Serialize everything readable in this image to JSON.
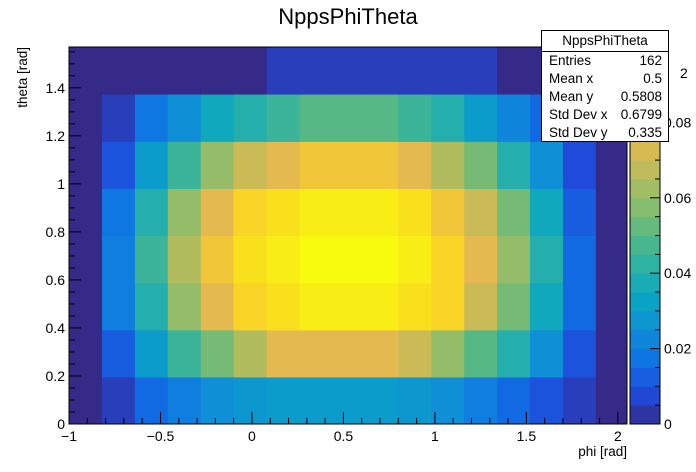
{
  "chart_data": {
    "type": "heatmap",
    "title": "NppsPhiTheta",
    "xlabel": "phi [rad]",
    "ylabel": "theta [rad]",
    "xlim": [
      -1.0,
      2.05
    ],
    "ylim": [
      0,
      1.57
    ],
    "x_ticks": [
      "−1",
      "−0.5",
      "0",
      "0.5",
      "1",
      "1.5",
      "2"
    ],
    "y_ticks": [
      "0",
      "0.2",
      "0.4",
      "0.6",
      "0.8",
      "1",
      "1.2",
      "1.4"
    ],
    "x_bins": [
      -1.0,
      -0.82,
      -0.64,
      -0.46,
      -0.28,
      -0.1,
      0.08,
      0.26,
      0.44,
      0.62,
      0.8,
      0.98,
      1.16,
      1.34,
      1.52,
      1.7,
      1.88,
      2.05
    ],
    "y_bins": [
      0,
      0.196,
      0.392,
      0.589,
      0.785,
      0.981,
      1.177,
      1.374,
      1.57
    ],
    "values": [
      [
        0.0,
        0.005,
        0.015,
        0.02,
        0.025,
        0.028,
        0.03,
        0.03,
        0.03,
        0.03,
        0.028,
        0.025,
        0.02,
        0.015,
        0.01,
        0.005,
        0.0
      ],
      [
        0.0,
        0.012,
        0.03,
        0.045,
        0.055,
        0.065,
        0.075,
        0.075,
        0.075,
        0.075,
        0.07,
        0.06,
        0.05,
        0.04,
        0.025,
        0.01,
        0.0
      ],
      [
        0.0,
        0.02,
        0.04,
        0.06,
        0.075,
        0.085,
        0.09,
        0.095,
        0.095,
        0.095,
        0.09,
        0.085,
        0.07,
        0.055,
        0.035,
        0.015,
        0.0
      ],
      [
        0.0,
        0.02,
        0.045,
        0.065,
        0.08,
        0.09,
        0.095,
        0.1,
        0.1,
        0.1,
        0.095,
        0.085,
        0.075,
        0.06,
        0.04,
        0.015,
        0.0
      ],
      [
        0.0,
        0.018,
        0.04,
        0.06,
        0.075,
        0.085,
        0.09,
        0.095,
        0.095,
        0.095,
        0.09,
        0.08,
        0.07,
        0.055,
        0.035,
        0.012,
        0.0
      ],
      [
        0.0,
        0.01,
        0.03,
        0.045,
        0.06,
        0.07,
        0.075,
        0.08,
        0.08,
        0.08,
        0.075,
        0.065,
        0.055,
        0.04,
        0.025,
        0.008,
        0.0
      ],
      [
        0.0,
        0.005,
        0.018,
        0.025,
        0.035,
        0.04,
        0.045,
        0.05,
        0.05,
        0.05,
        0.045,
        0.04,
        0.03,
        0.022,
        0.015,
        0.005,
        0.0
      ],
      [
        0.0,
        0.0,
        0.0,
        0.0,
        0.0,
        0.0,
        0.005,
        0.005,
        0.005,
        0.005,
        0.005,
        0.005,
        0.005,
        0.0,
        0.0,
        0.0,
        0.0
      ]
    ],
    "zlim": [
      0,
      0.1
    ],
    "colorbar_ticks": [
      "0",
      "0.02",
      "0.04",
      "0.06",
      "0.08"
    ],
    "colorbar_top_label": "2",
    "colormap_stops": [
      "#352a87",
      "#1f4bdc",
      "#0f72e3",
      "#0f8fd6",
      "#0aa5c3",
      "#2ab2a6",
      "#55b885",
      "#8bbd6c",
      "#bbbc5c",
      "#e4b94f",
      "#f9cf2a",
      "#f8e619",
      "#f9fb0e"
    ],
    "stats": {
      "name": "NppsPhiTheta",
      "rows": [
        {
          "label": "Entries",
          "value": "162"
        },
        {
          "label": "Mean x",
          "value": "0.5"
        },
        {
          "label": "Mean y",
          "value": "0.5808"
        },
        {
          "label": "Std Dev x",
          "value": "0.6799"
        },
        {
          "label": "Std Dev y",
          "value": "0.335"
        }
      ]
    }
  }
}
